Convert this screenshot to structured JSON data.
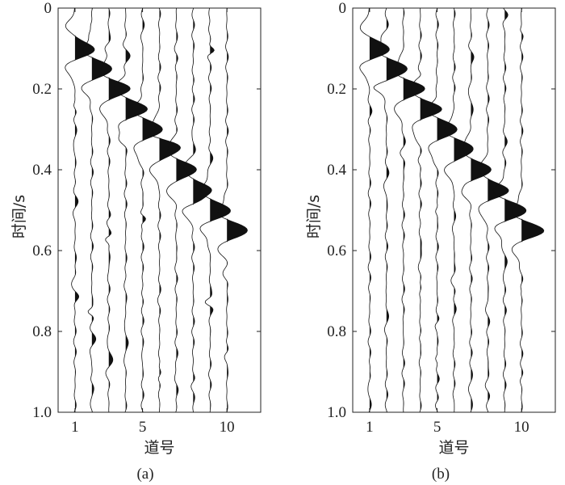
{
  "chart_data": [
    {
      "type": "seismic-wiggle",
      "panel_label": "(a)",
      "xlabel": "道号",
      "ylabel": "时间/s",
      "x_ticks": [
        1,
        5,
        10
      ],
      "y_ticks": [
        "0",
        "0.2",
        "0.4",
        "0.6",
        "0.8",
        "1.0"
      ],
      "xlim": [
        0,
        12
      ],
      "ylim": [
        0,
        1.0
      ],
      "y_reversed": true,
      "grid": false,
      "fill": "positive-black",
      "traces": [
        1,
        2,
        3,
        4,
        5,
        6,
        7,
        8,
        9,
        10
      ],
      "event_times": [
        0.1,
        0.15,
        0.2,
        0.25,
        0.3,
        0.35,
        0.4,
        0.45,
        0.5,
        0.55
      ],
      "noise_level": 0.23
    },
    {
      "type": "seismic-wiggle",
      "panel_label": "(b)",
      "xlabel": "道号",
      "ylabel": "时间/s",
      "x_ticks": [
        1,
        5,
        10
      ],
      "y_ticks": [
        "0",
        "0.2",
        "0.4",
        "0.6",
        "0.8",
        "1.0"
      ],
      "xlim": [
        0,
        12
      ],
      "ylim": [
        0,
        1.0
      ],
      "y_reversed": true,
      "grid": false,
      "fill": "positive-black",
      "traces": [
        1,
        2,
        3,
        4,
        5,
        6,
        7,
        8,
        9,
        10
      ],
      "event_times": [
        0.1,
        0.15,
        0.2,
        0.25,
        0.3,
        0.35,
        0.4,
        0.45,
        0.5,
        0.55
      ],
      "noise_level": 0.15
    }
  ]
}
